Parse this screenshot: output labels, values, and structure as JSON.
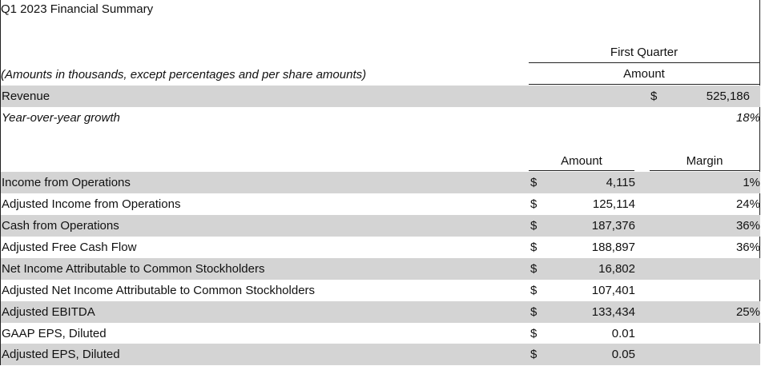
{
  "title": "Q1 2023 Financial Summary",
  "header": {
    "period": "First Quarter",
    "amount_label": "Amount",
    "note": "(Amounts in thousands, except percentages and per share amounts)"
  },
  "revenue": {
    "label": "Revenue",
    "currency": "$",
    "value": "525,186",
    "growth_label": "Year-over-year growth",
    "growth_value": "18%"
  },
  "metrics_header": {
    "amount": "Amount",
    "margin": "Margin"
  },
  "rows": [
    {
      "label": "Income from Operations",
      "currency": "$",
      "amount": "4,115",
      "margin": "1%"
    },
    {
      "label": "Adjusted Income from Operations",
      "currency": "$",
      "amount": "125,114",
      "margin": "24%"
    },
    {
      "label": "Cash from Operations",
      "currency": "$",
      "amount": "187,376",
      "margin": "36%"
    },
    {
      "label": "Adjusted Free Cash Flow",
      "currency": "$",
      "amount": "188,897",
      "margin": "36%"
    },
    {
      "label": "Net Income Attributable to Common Stockholders",
      "currency": "$",
      "amount": "16,802",
      "margin": ""
    },
    {
      "label": "Adjusted Net Income Attributable to Common Stockholders",
      "currency": "$",
      "amount": "107,401",
      "margin": ""
    },
    {
      "label": "Adjusted EBITDA",
      "currency": "$",
      "amount": "133,434",
      "margin": "25%"
    },
    {
      "label": "GAAP EPS, Diluted",
      "currency": "$",
      "amount": "0.01",
      "margin": ""
    },
    {
      "label": "Adjusted EPS, Diluted",
      "currency": "$",
      "amount": "0.05",
      "margin": ""
    }
  ],
  "colors": {
    "band": "#d4d4d4",
    "text": "#111111",
    "rule": "#222222"
  }
}
